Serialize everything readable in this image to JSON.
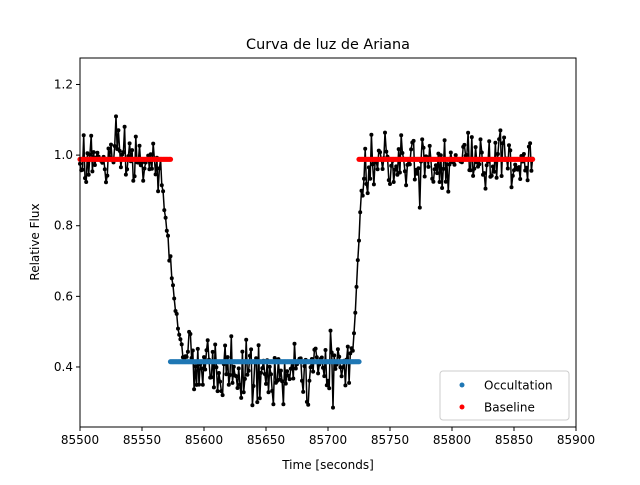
{
  "chart_data": {
    "type": "scatter",
    "title": "Curva de luz de Ariana",
    "xlabel": "Time [seconds]",
    "ylabel": "Relative Flux",
    "xlim": [
      85500,
      85900
    ],
    "ylim": [
      0.23,
      1.275
    ],
    "xticks": [
      85500,
      85550,
      85600,
      85650,
      85700,
      85750,
      85800,
      85850,
      85900
    ],
    "yticks": [
      0.4,
      0.6,
      0.8,
      1.0,
      1.2
    ],
    "xtick_labels": [
      "85500",
      "85550",
      "85600",
      "85650",
      "85700",
      "85750",
      "85800",
      "85850",
      "85900"
    ],
    "ytick_labels": [
      "0.4",
      "0.6",
      "0.8",
      "1.0",
      "1.2"
    ],
    "grid": false,
    "legend_position": "lower-right",
    "light_curve": {
      "color": "#000000",
      "x_range": [
        85500,
        85865
      ],
      "ingress": [
        85565,
        85585
      ],
      "egress": [
        85720,
        85730
      ],
      "out_of_transit_level": 0.99,
      "in_transit_level": 0.39,
      "noise_amplitude": 0.07,
      "x": [
        85500,
        85520,
        85540,
        85560,
        85565,
        85570,
        85575,
        85580,
        85585,
        85600,
        85620,
        85640,
        85660,
        85680,
        85700,
        85715,
        85720,
        85723,
        85726,
        85730,
        85750,
        85770,
        85790,
        85810,
        85830,
        85850,
        85865
      ],
      "y": [
        0.99,
        0.98,
        0.99,
        0.97,
        0.93,
        0.8,
        0.62,
        0.5,
        0.42,
        0.39,
        0.39,
        0.38,
        0.37,
        0.38,
        0.39,
        0.4,
        0.45,
        0.62,
        0.84,
        0.97,
        0.99,
        0.99,
        0.98,
        0.99,
        0.99,
        0.98,
        0.99
      ]
    },
    "series": [
      {
        "name": "Occultation",
        "color": "#1f77b4",
        "x": [
          85573,
          85725
        ],
        "y": [
          0.415,
          0.415
        ]
      },
      {
        "name": "Baseline",
        "color": "#ff0000",
        "segments": [
          {
            "x": [
              85500,
              85573
            ],
            "y": [
              0.988,
              0.988
            ]
          },
          {
            "x": [
              85725,
              85865
            ],
            "y": [
              0.988,
              0.988
            ]
          }
        ]
      }
    ]
  }
}
